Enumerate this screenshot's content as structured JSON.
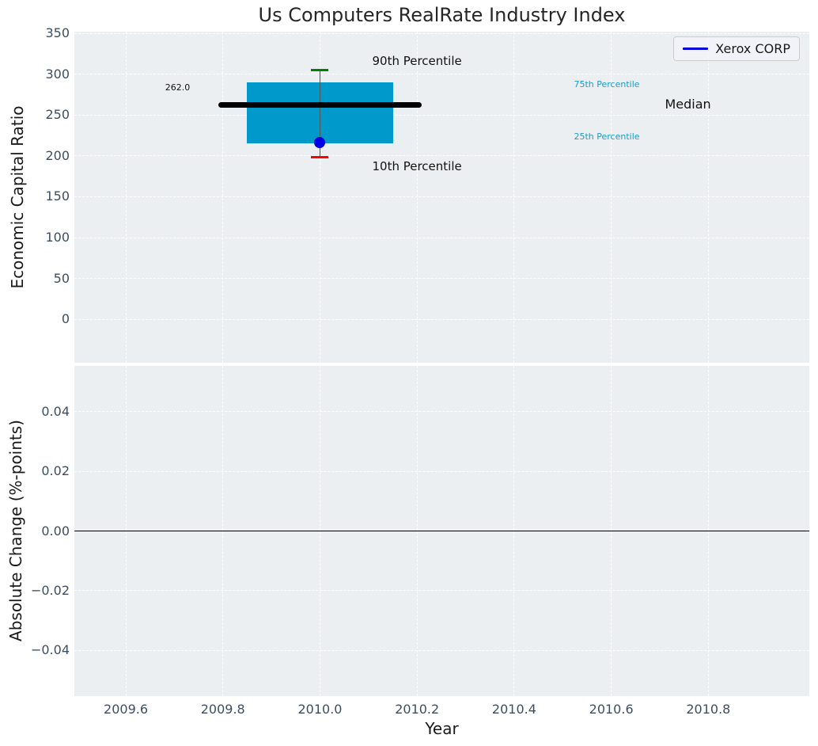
{
  "title": "Us Computers RealRate Industry Index",
  "legend": {
    "label": "Xerox CORP",
    "line_color": "#0000dd"
  },
  "chart_data": {
    "type": "boxplot",
    "xlabel": "Year",
    "xlim": [
      2009.494,
      2011.008
    ],
    "x_ticks": {
      "values": [
        2009.6,
        2009.8,
        2010.0,
        2010.2,
        2010.4,
        2010.6,
        2010.8
      ],
      "labels": [
        "2009.6",
        "2009.8",
        "2010.0",
        "2010.2",
        "2010.4",
        "2010.6",
        "2010.8"
      ]
    },
    "top_plot": {
      "ylabel": "Economic Capital Ratio",
      "ylim": [
        -53,
        352
      ],
      "y_ticks": {
        "values": [
          350,
          300,
          250,
          200,
          150,
          100,
          50,
          0
        ],
        "labels": [
          "350",
          "300",
          "250",
          "200",
          "150",
          "100",
          "50",
          "0"
        ]
      },
      "grid": true,
      "box": {
        "x": 2010.0,
        "half_width": 0.15,
        "median_half_width": 0.21,
        "p10": 198,
        "p25": 215,
        "median": 262,
        "p75": 290,
        "p90": 305,
        "company_value": 216
      },
      "annotations": [
        {
          "id": "median-value",
          "text": "262.0"
        },
        {
          "id": "p90-label",
          "text": "90th Percentile"
        },
        {
          "id": "p10-label",
          "text": "10th Percentile"
        },
        {
          "id": "p75-label",
          "text": "75th Percentile"
        },
        {
          "id": "p25-label",
          "text": "25th Percentile"
        },
        {
          "id": "median-label",
          "text": "Median"
        }
      ]
    },
    "bottom_plot": {
      "ylabel": "Absolute Change (%-points)",
      "ylim": [
        -0.0553,
        0.0553
      ],
      "y_ticks": {
        "values": [
          0.04,
          0.02,
          0.0,
          -0.02,
          -0.04
        ],
        "labels": [
          "0.04",
          "0.02",
          "0.00",
          "−0.02",
          "−0.04"
        ]
      },
      "grid": true,
      "zero_line": 0.0
    },
    "legend_position": "top-right",
    "colors": {
      "plot_bg": "#eceff1",
      "grid": "#ffffff",
      "tick_label": "#3d4e60",
      "box_fill": "#0099cb",
      "median_line": "#000000",
      "whisker": "#555555",
      "p90_cap": "#008000",
      "p10_cap": "#ff0000",
      "company_dot": "#0000e6",
      "percentile_text": "#1a9bc9",
      "annotation_text": "#111111",
      "zero_line": "#000000"
    }
  }
}
